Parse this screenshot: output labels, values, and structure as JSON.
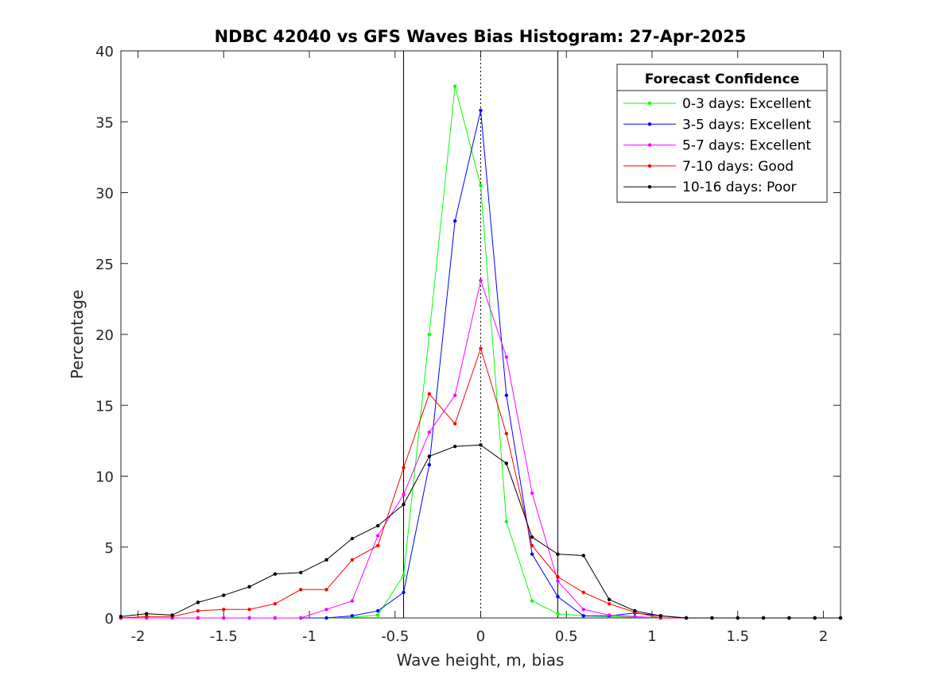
{
  "chart_data": {
    "type": "line",
    "title": "NDBC 42040 vs GFS Waves Bias Histogram: 27-Apr-2025",
    "xlabel": "Wave height, m, bias",
    "ylabel": "Percentage",
    "xlim": [
      -2.1,
      2.1
    ],
    "ylim": [
      0,
      40
    ],
    "xticks": [
      -2,
      -1.5,
      -1,
      -0.5,
      0,
      0.5,
      1,
      1.5,
      2
    ],
    "xtick_labels": [
      "-2",
      "-1.5",
      "-1",
      "-0.5",
      "0",
      "0.5",
      "1",
      "1.5",
      "2"
    ],
    "yticks": [
      0,
      5,
      10,
      15,
      20,
      25,
      30,
      35,
      40
    ],
    "ytick_labels": [
      "0",
      "5",
      "10",
      "15",
      "20",
      "25",
      "30",
      "35",
      "40"
    ],
    "grid": false,
    "legend": {
      "title": "Forecast Confidence",
      "position": "top-right"
    },
    "reference_lines": [
      {
        "x": -0.45,
        "style": "solid"
      },
      {
        "x": 0,
        "style": "dotted"
      },
      {
        "x": 0.45,
        "style": "solid"
      }
    ],
    "x": [
      -2.1,
      -1.95,
      -1.8,
      -1.65,
      -1.5,
      -1.35,
      -1.2,
      -1.05,
      -0.9,
      -0.75,
      -0.6,
      -0.45,
      -0.3,
      -0.15,
      0,
      0.15,
      0.3,
      0.45,
      0.6,
      0.75,
      0.9,
      1.05,
      1.2,
      1.35,
      1.5,
      1.65,
      1.8,
      1.95,
      2.1
    ],
    "series": [
      {
        "name": "0-3 days: Excellent",
        "color": "#00ff00",
        "values": [
          0,
          0,
          0,
          0,
          0,
          0,
          0,
          0,
          0,
          0.05,
          0.2,
          3.0,
          20.0,
          37.5,
          30.5,
          6.8,
          1.2,
          0.3,
          0.15,
          0.1,
          0.05,
          0,
          0,
          0,
          0,
          0,
          0,
          0,
          0
        ]
      },
      {
        "name": "3-5 days: Excellent",
        "color": "#0000ff",
        "values": [
          0,
          0,
          0,
          0,
          0,
          0,
          0,
          0,
          0,
          0.15,
          0.5,
          1.8,
          10.8,
          28.0,
          35.8,
          15.7,
          4.5,
          1.5,
          0.15,
          0.15,
          0.35,
          0.15,
          0,
          0,
          0,
          0,
          0,
          0,
          0
        ]
      },
      {
        "name": "5-7 days: Excellent",
        "color": "#ff00ff",
        "values": [
          0,
          0,
          0,
          0,
          0,
          0,
          0,
          0,
          0.6,
          1.2,
          5.8,
          8.7,
          13.1,
          15.7,
          23.8,
          18.4,
          8.8,
          2.6,
          0.6,
          0.2,
          0.1,
          0,
          0,
          0,
          0,
          0,
          0,
          0,
          0
        ]
      },
      {
        "name": "7-10 days: Good",
        "color": "#ff0000",
        "values": [
          0,
          0.1,
          0.1,
          0.5,
          0.6,
          0.6,
          1.0,
          2.0,
          2.0,
          4.1,
          5.1,
          10.6,
          15.8,
          13.7,
          19.0,
          13.0,
          5.1,
          2.9,
          1.8,
          1.0,
          0.4,
          0,
          0,
          0,
          0,
          0,
          0,
          0,
          0
        ]
      },
      {
        "name": "10-16 days: Poor",
        "color": "#000000",
        "values": [
          0.1,
          0.3,
          0.2,
          1.1,
          1.6,
          2.2,
          3.1,
          3.2,
          4.1,
          5.6,
          6.5,
          8.0,
          11.4,
          12.1,
          12.2,
          10.9,
          5.7,
          4.5,
          4.4,
          1.3,
          0.5,
          0.15,
          0,
          0,
          0,
          0,
          0,
          0,
          0
        ]
      }
    ]
  }
}
